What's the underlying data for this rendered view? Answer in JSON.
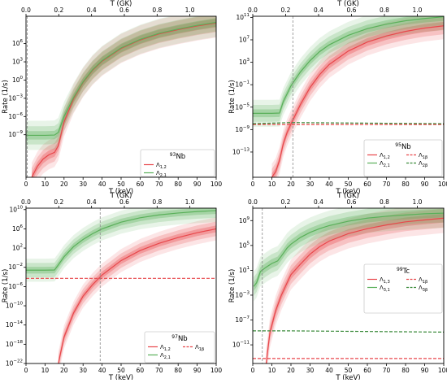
{
  "chart_data": [
    {
      "type": "line",
      "title": "",
      "legend_title": "93Nb",
      "legend_title_sup": "93",
      "legend_title_main": "Nb",
      "legend_placement": "lower-right",
      "xlabel": "T (keV)",
      "ylabel": "Rate (1/s)",
      "top_xlabel": "T (GK)",
      "xlim": [
        0,
        100
      ],
      "ylog": true,
      "ylim_log10": [
        -16,
        10.5
      ],
      "xticks": [
        0,
        10,
        20,
        30,
        40,
        50,
        60,
        70,
        80,
        90,
        100
      ],
      "xtick_labels": [
        "0",
        "10",
        "20",
        "30",
        "40",
        "50",
        "60",
        "70",
        "80",
        "90",
        "100"
      ],
      "top_xticks_gk": [
        0,
        0.2,
        0.4,
        0.6,
        0.8,
        1.0
      ],
      "top_xtick_labels": [
        "0.0",
        "0.2",
        "0.4",
        "0.6",
        "0.8",
        "1.0"
      ],
      "yticks_log10": [
        -9,
        -6,
        -3,
        0,
        3,
        6
      ],
      "ytick_labels": [
        "10−9",
        "10−6",
        "10−3",
        "100",
        "103",
        "106"
      ],
      "vline_x": 0.6,
      "series": [
        {
          "name": "Λ1,2",
          "label_main": "Λ",
          "label_sub": "1,2",
          "color": "#e8474b",
          "dash": false,
          "band": true,
          "x": [
            3,
            6,
            9,
            12,
            15,
            17,
            20,
            25,
            30,
            35,
            40,
            50,
            60,
            70,
            80,
            90,
            100
          ],
          "log10y": [
            -16,
            -14.2,
            -13,
            -12.3,
            -11.9,
            -10.8,
            -6.9,
            -3.1,
            -0.4,
            1.6,
            3.1,
            5.2,
            6.6,
            7.6,
            8.3,
            8.9,
            9.4
          ]
        },
        {
          "name": "Λ2,1",
          "label_main": "Λ",
          "label_sub": "2,1",
          "color": "#5ab05a",
          "dash": false,
          "band": true,
          "x": [
            0,
            5,
            10,
            15,
            17,
            20,
            25,
            30,
            35,
            40,
            50,
            60,
            70,
            80,
            90,
            100
          ],
          "log10y": [
            -9.1,
            -9.1,
            -9.1,
            -9.05,
            -8.6,
            -6.0,
            -2.9,
            -0.3,
            1.7,
            3.2,
            5.3,
            6.7,
            7.7,
            8.4,
            9.0,
            9.5
          ]
        }
      ]
    },
    {
      "type": "line",
      "title": "",
      "legend_title": "95Nb",
      "legend_title_sup": "95",
      "legend_title_main": "Nb",
      "legend_placement": "lower-right",
      "xlabel": "T (keV)",
      "ylabel": "Rate (1/s)",
      "top_xlabel": "T (GK)",
      "xlim": [
        0,
        100
      ],
      "ylog": true,
      "ylim_log10": [
        -17.5,
        11.2
      ],
      "xticks": [
        0,
        10,
        20,
        30,
        40,
        50,
        60,
        70,
        80,
        90,
        100
      ],
      "xtick_labels": [
        "0",
        "10",
        "20",
        "30",
        "40",
        "50",
        "60",
        "70",
        "80",
        "90",
        "100"
      ],
      "top_xticks_gk": [
        0,
        0.2,
        0.4,
        0.6,
        0.8,
        1.0
      ],
      "top_xtick_labels": [
        "0.0",
        "0.2",
        "0.4",
        "0.6",
        "0.8",
        "1.0"
      ],
      "yticks_log10": [
        -13,
        -9,
        -5,
        -1,
        3,
        7,
        11
      ],
      "ytick_labels": [
        "10−13",
        "10−9",
        "10−5",
        "10−1",
        "103",
        "107",
        "1011"
      ],
      "vline_x": 21,
      "series": [
        {
          "name": "Λ1,2",
          "label_main": "Λ",
          "label_sub": "1,2",
          "color": "#e8474b",
          "dash": false,
          "band": true,
          "x": [
            10,
            12,
            14,
            16,
            18,
            20,
            25,
            30,
            35,
            40,
            50,
            60,
            70,
            80,
            90,
            100
          ],
          "log10y": [
            -17.5,
            -16.5,
            -14.5,
            -11.5,
            -9.5,
            -8.0,
            -4.5,
            -1.5,
            0.8,
            2.6,
            5.0,
            6.6,
            7.7,
            8.5,
            9.1,
            9.5
          ]
        },
        {
          "name": "Λ2,1",
          "label_main": "Λ",
          "label_sub": "2,1",
          "color": "#5ab05a",
          "dash": false,
          "band": true,
          "x": [
            0,
            5,
            10,
            14,
            16,
            18,
            20,
            25,
            30,
            35,
            40,
            50,
            60,
            70,
            80,
            90,
            100
          ],
          "log10y": [
            -6.1,
            -6.1,
            -6.1,
            -6.05,
            -4.0,
            -2.6,
            -1.2,
            1.3,
            3.3,
            4.9,
            6.1,
            7.8,
            9.0,
            9.8,
            10.4,
            10.8,
            11.1
          ]
        },
        {
          "name": "Λ1β",
          "label_main": "Λ",
          "label_sub": "1β",
          "color": "#e8474b",
          "dash": true,
          "band": false,
          "x": [
            0,
            100
          ],
          "log10y": [
            -8.1,
            -8.1
          ]
        },
        {
          "name": "Λ2β",
          "label_main": "Λ",
          "label_sub": "2β",
          "color": "#3a8a3a",
          "dash": true,
          "band": false,
          "x": [
            0,
            20,
            40,
            60,
            80,
            100
          ],
          "log10y": [
            -7.95,
            -7.75,
            -7.8,
            -7.85,
            -7.9,
            -7.95
          ]
        }
      ]
    },
    {
      "type": "line",
      "title": "",
      "legend_title": "97Nb",
      "legend_title_sup": "97",
      "legend_title_main": "Nb",
      "legend_placement": "lower-right",
      "xlabel": "T (keV)",
      "ylabel": "Rate (1/s)",
      "top_xlabel": "T (GK)",
      "xlim": [
        0,
        100
      ],
      "ylog": true,
      "ylim_log10": [
        -22,
        10.3
      ],
      "xticks": [
        0,
        10,
        20,
        30,
        40,
        50,
        60,
        70,
        80,
        90,
        100
      ],
      "xtick_labels": [
        "0",
        "10",
        "20",
        "30",
        "40",
        "50",
        "60",
        "70",
        "80",
        "90",
        "100"
      ],
      "top_xticks_gk": [
        0,
        0.2,
        0.4,
        0.6,
        0.8,
        1.0
      ],
      "top_xtick_labels": [
        "0.0",
        "0.2",
        "0.4",
        "0.6",
        "0.8",
        "1.0"
      ],
      "yticks_log10": [
        -22,
        -18,
        -14,
        -10,
        -6,
        -2,
        2,
        6,
        10
      ],
      "ytick_labels": [
        "10−22",
        "10−18",
        "10−14",
        "10−10",
        "10−6",
        "10−2",
        "102",
        "106",
        "1010"
      ],
      "vline_x": 39,
      "series": [
        {
          "name": "Λ1,2",
          "label_main": "Λ",
          "label_sub": "1,2",
          "color": "#e8474b",
          "dash": false,
          "band": true,
          "x": [
            17,
            20,
            25,
            30,
            35,
            40,
            50,
            60,
            70,
            80,
            90,
            100
          ],
          "log10y": [
            -22,
            -16.5,
            -11.5,
            -8.0,
            -5.6,
            -3.6,
            -0.6,
            1.5,
            3.0,
            4.2,
            5.2,
            6.0
          ]
        },
        {
          "name": "Λ2,1",
          "label_main": "Λ",
          "label_sub": "2,1",
          "color": "#5ab05a",
          "dash": false,
          "band": true,
          "x": [
            0,
            5,
            10,
            15,
            17,
            20,
            25,
            30,
            35,
            40,
            50,
            60,
            70,
            80,
            90,
            100
          ],
          "log10y": [
            -2.6,
            -2.6,
            -2.6,
            -2.55,
            -1.5,
            0.2,
            2.3,
            3.8,
            5.0,
            6.0,
            7.4,
            8.3,
            8.9,
            9.3,
            9.6,
            9.8
          ]
        },
        {
          "name": "Λ1β",
          "label_main": "Λ",
          "label_sub": "1β",
          "color": "#e8474b",
          "dash": true,
          "band": false,
          "x": [
            0,
            100
          ],
          "log10y": [
            -4.3,
            -4.3
          ]
        }
      ]
    },
    {
      "type": "line",
      "title": "",
      "legend_title": "99Tc",
      "legend_title_sup": "99",
      "legend_title_main": "Tc",
      "legend_placement": "center-right",
      "xlabel": "T (keV)",
      "ylabel": "Rate (1/s)",
      "top_xlabel": "T (GK)",
      "xlim": [
        0,
        100
      ],
      "ylog": true,
      "ylim_log10": [
        -14,
        11
      ],
      "xticks": [
        0,
        10,
        20,
        30,
        40,
        50,
        60,
        70,
        80,
        90,
        100
      ],
      "xtick_labels": [
        "0",
        "10",
        "20",
        "30",
        "40",
        "50",
        "60",
        "70",
        "80",
        "90",
        "100"
      ],
      "top_xticks_gk": [
        0,
        0.2,
        0.4,
        0.6,
        0.8,
        1.0
      ],
      "top_xtick_labels": [
        "0.0",
        "0.2",
        "0.4",
        "0.6",
        "0.8",
        "1.0"
      ],
      "yticks_log10": [
        -11,
        -7,
        -3,
        1,
        5,
        9
      ],
      "ytick_labels": [
        "10−11",
        "10−7",
        "10−3",
        "101",
        "105",
        "109"
      ],
      "vline_x": 5,
      "series": [
        {
          "name": "Λ1,3",
          "label_main": "Λ",
          "label_sub": "1,3",
          "color": "#e8474b",
          "dash": false,
          "band": true,
          "x": [
            7,
            9,
            12,
            15,
            18,
            20,
            25,
            30,
            35,
            40,
            50,
            60,
            70,
            80,
            90,
            100
          ],
          "log10y": [
            -14,
            -9,
            -5.5,
            -3.0,
            -1.0,
            0.3,
            2.0,
            3.6,
            4.8,
            5.7,
            6.9,
            7.7,
            8.3,
            8.8,
            9.1,
            9.4
          ]
        },
        {
          "name": "Λ3,1",
          "label_main": "Λ",
          "label_sub": "3,1",
          "color": "#5ab05a",
          "dash": false,
          "band": true,
          "x": [
            0.5,
            2,
            4,
            7,
            10,
            13,
            15,
            18,
            20,
            25,
            30,
            35,
            40,
            50,
            60,
            70,
            80,
            90,
            100
          ],
          "log10y": [
            -1.6,
            -1.0,
            0.8,
            1.5,
            2.1,
            2.5,
            3.3,
            4.6,
            5.2,
            6.3,
            7.1,
            7.7,
            8.2,
            8.9,
            9.4,
            9.7,
            9.9,
            10.1,
            10.2
          ]
        },
        {
          "name": "Λ1β",
          "label_main": "Λ",
          "label_sub": "1β",
          "color": "#e8474b",
          "dash": true,
          "band": false,
          "x": [
            0,
            100
          ],
          "log10y": [
            -13.2,
            -13.2
          ]
        },
        {
          "name": "Λ3β",
          "label_main": "Λ",
          "label_sub": "3β",
          "color": "#3a8a3a",
          "dash": true,
          "band": false,
          "x": [
            0,
            20,
            40,
            60,
            80,
            100
          ],
          "log10y": [
            -8.75,
            -8.75,
            -8.8,
            -8.85,
            -8.9,
            -8.95
          ]
        }
      ]
    }
  ]
}
